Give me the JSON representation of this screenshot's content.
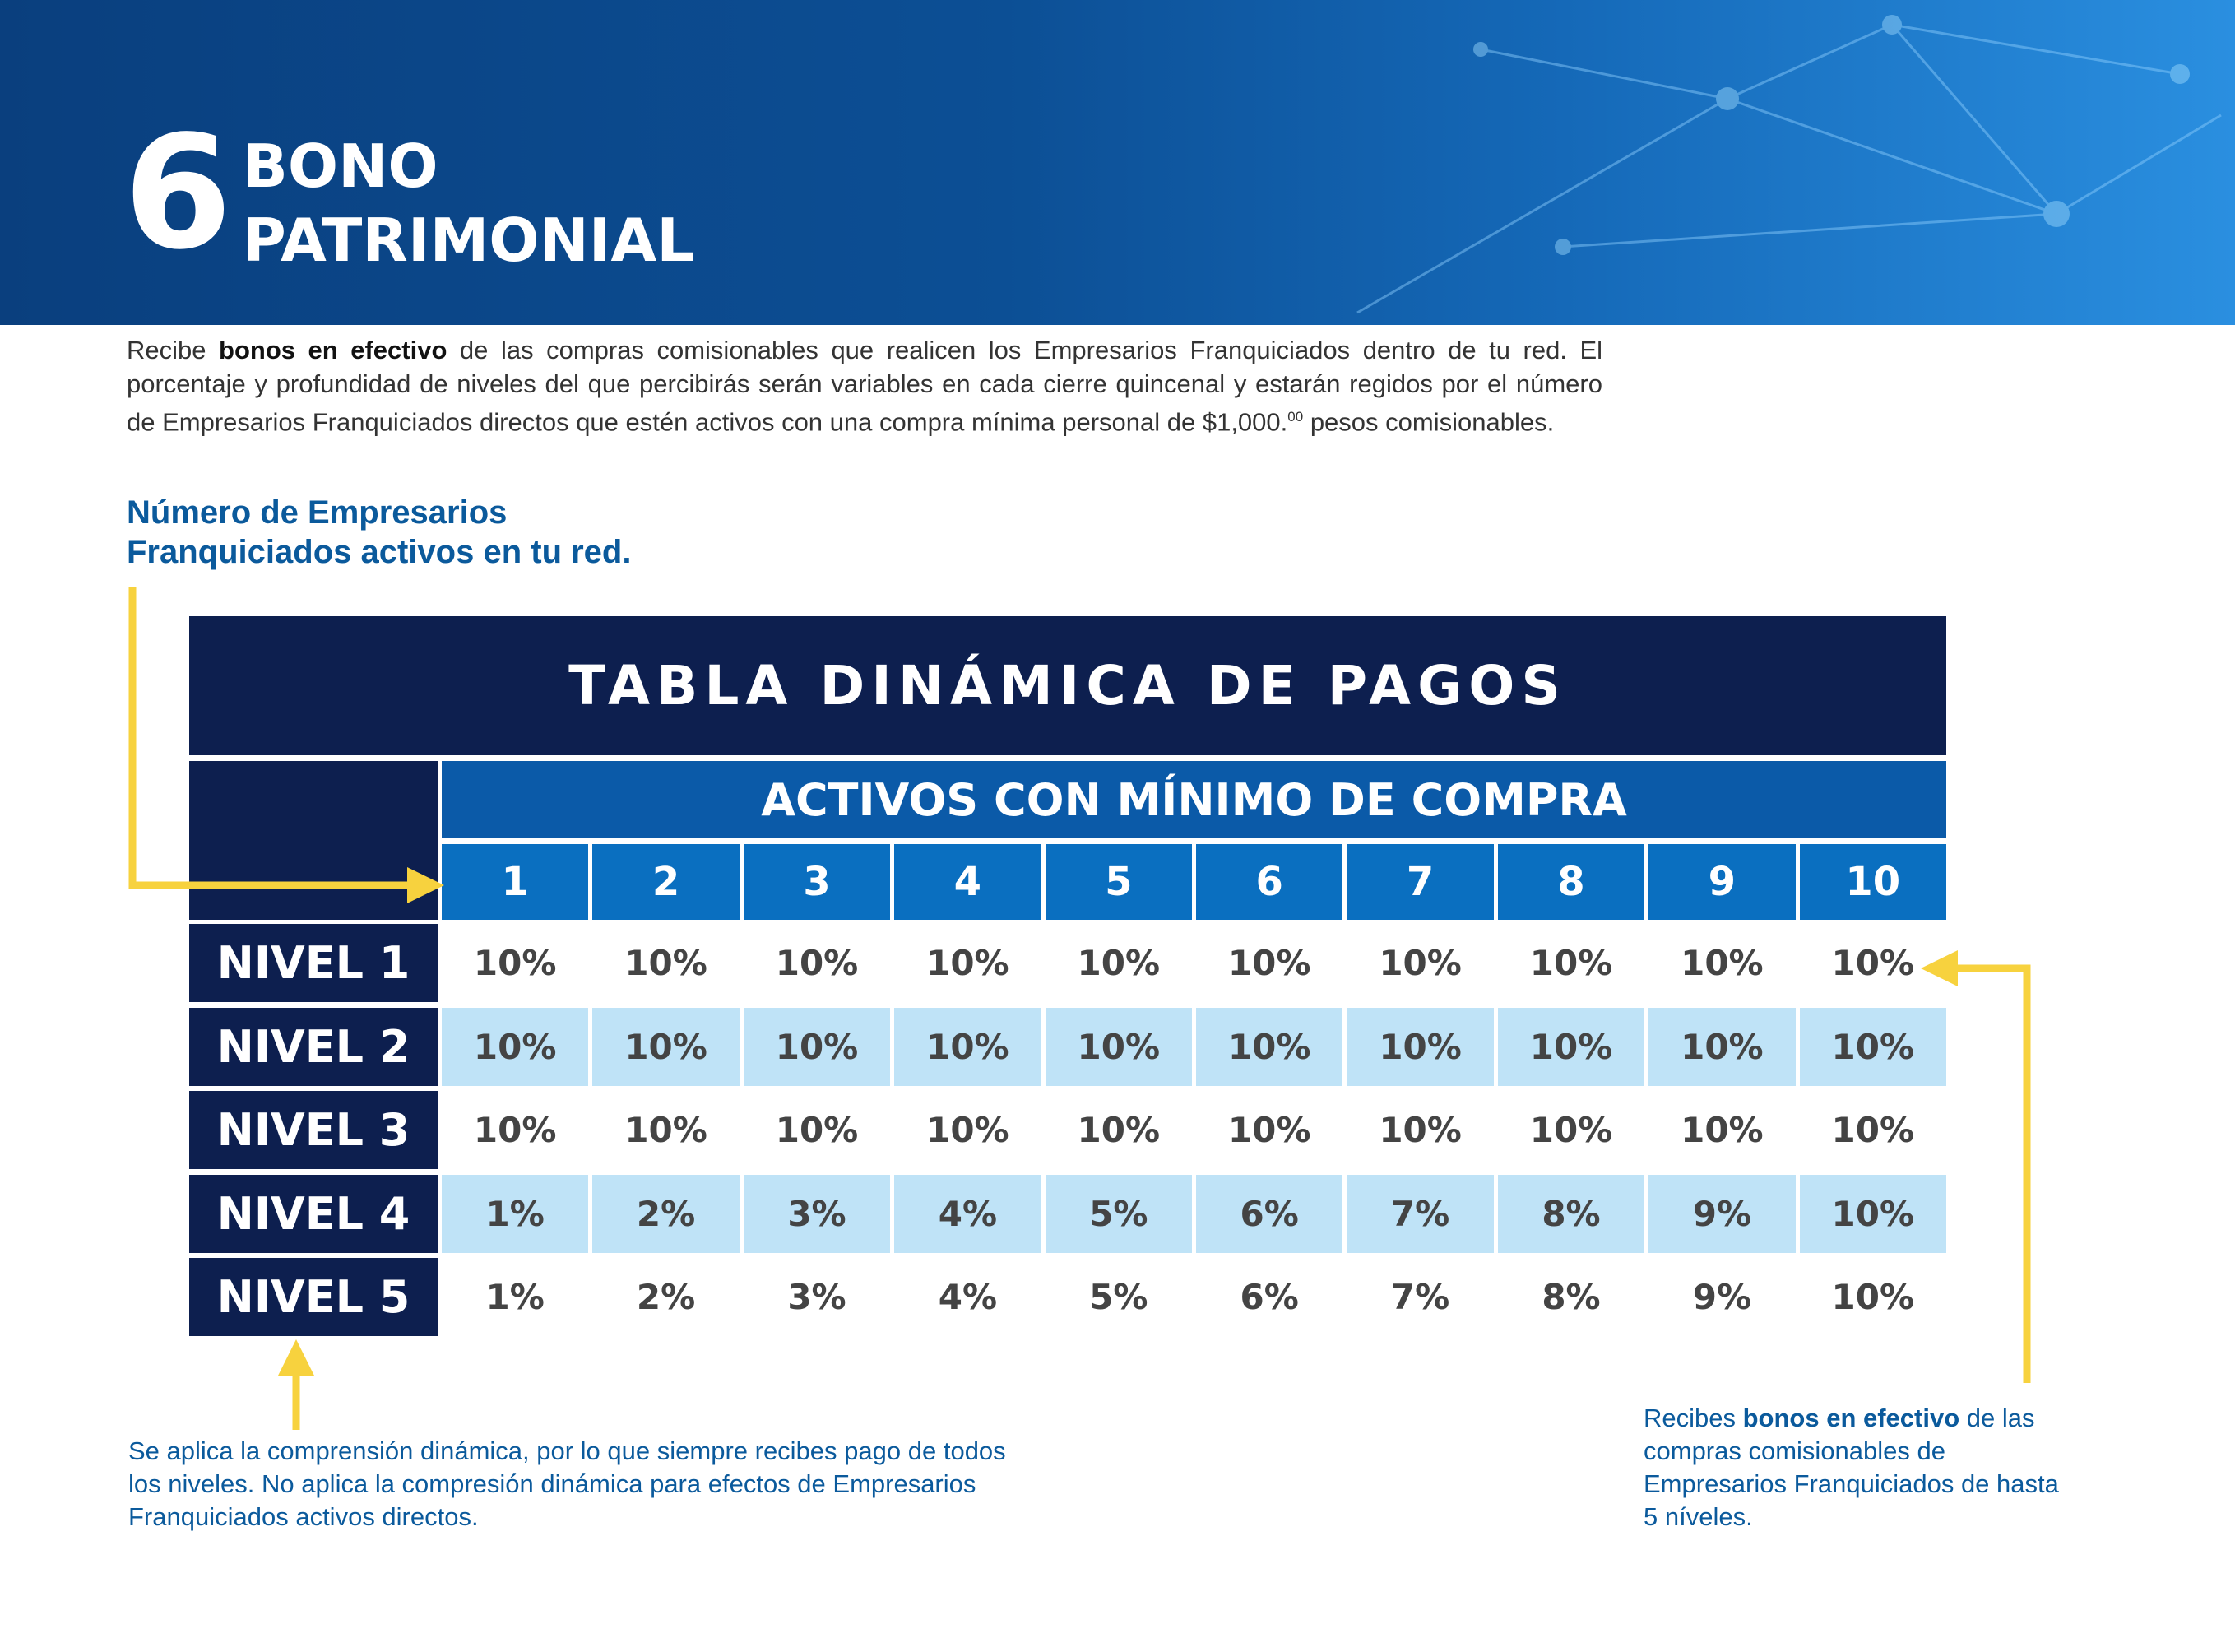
{
  "header": {
    "number": "6",
    "title": [
      "BONO",
      "PATRIMONIAL"
    ]
  },
  "intro": [
    "Recibe ",
    "bonos en efectivo",
    " de las compras comisionables que realicen los Empresarios Franquiciados dentro de tu red. El porcentaje y profundidad de niveles del que percibirás serán variables en cada cierre quincenal y estarán regidos por el número de Empresarios Franquiciados directos que estén activos con una compra mínima personal de $1,000.",
    "00",
    " pesos comisionables."
  ],
  "subheading": [
    "Número de Empresarios",
    "Franquiciados activos en tu red."
  ],
  "table": {
    "title": "TABLA DINÁMICA DE PAGOS",
    "subtitle": "ACTIVOS CON MÍNIMO DE COMPRA",
    "columns": [
      "1",
      "2",
      "3",
      "4",
      "5",
      "6",
      "7",
      "8",
      "9",
      "10"
    ],
    "rows": [
      {
        "label": "NIVEL 1",
        "values": [
          "10%",
          "10%",
          "10%",
          "10%",
          "10%",
          "10%",
          "10%",
          "10%",
          "10%",
          "10%"
        ]
      },
      {
        "label": "NIVEL 2",
        "values": [
          "10%",
          "10%",
          "10%",
          "10%",
          "10%",
          "10%",
          "10%",
          "10%",
          "10%",
          "10%"
        ]
      },
      {
        "label": "NIVEL 3",
        "values": [
          "10%",
          "10%",
          "10%",
          "10%",
          "10%",
          "10%",
          "10%",
          "10%",
          "10%",
          "10%"
        ]
      },
      {
        "label": "NIVEL 4",
        "values": [
          "1%",
          "2%",
          "3%",
          "4%",
          "5%",
          "6%",
          "7%",
          "8%",
          "9%",
          "10%"
        ]
      },
      {
        "label": "NIVEL 5",
        "values": [
          "1%",
          "2%",
          "3%",
          "4%",
          "5%",
          "6%",
          "7%",
          "8%",
          "9%",
          "10%"
        ]
      }
    ]
  },
  "notes": {
    "left": "Se aplica la comprensión dinámica, por lo que siempre recibes pago de todos los niveles. No aplica la compresión dinámica para efectos de Empresarios Franquiciados activos directos.",
    "right": [
      "Recibes ",
      "bonos en efectivo",
      " de las compras comisionables de Empresarios Franquiciados de hasta 5 níveles."
    ]
  }
}
